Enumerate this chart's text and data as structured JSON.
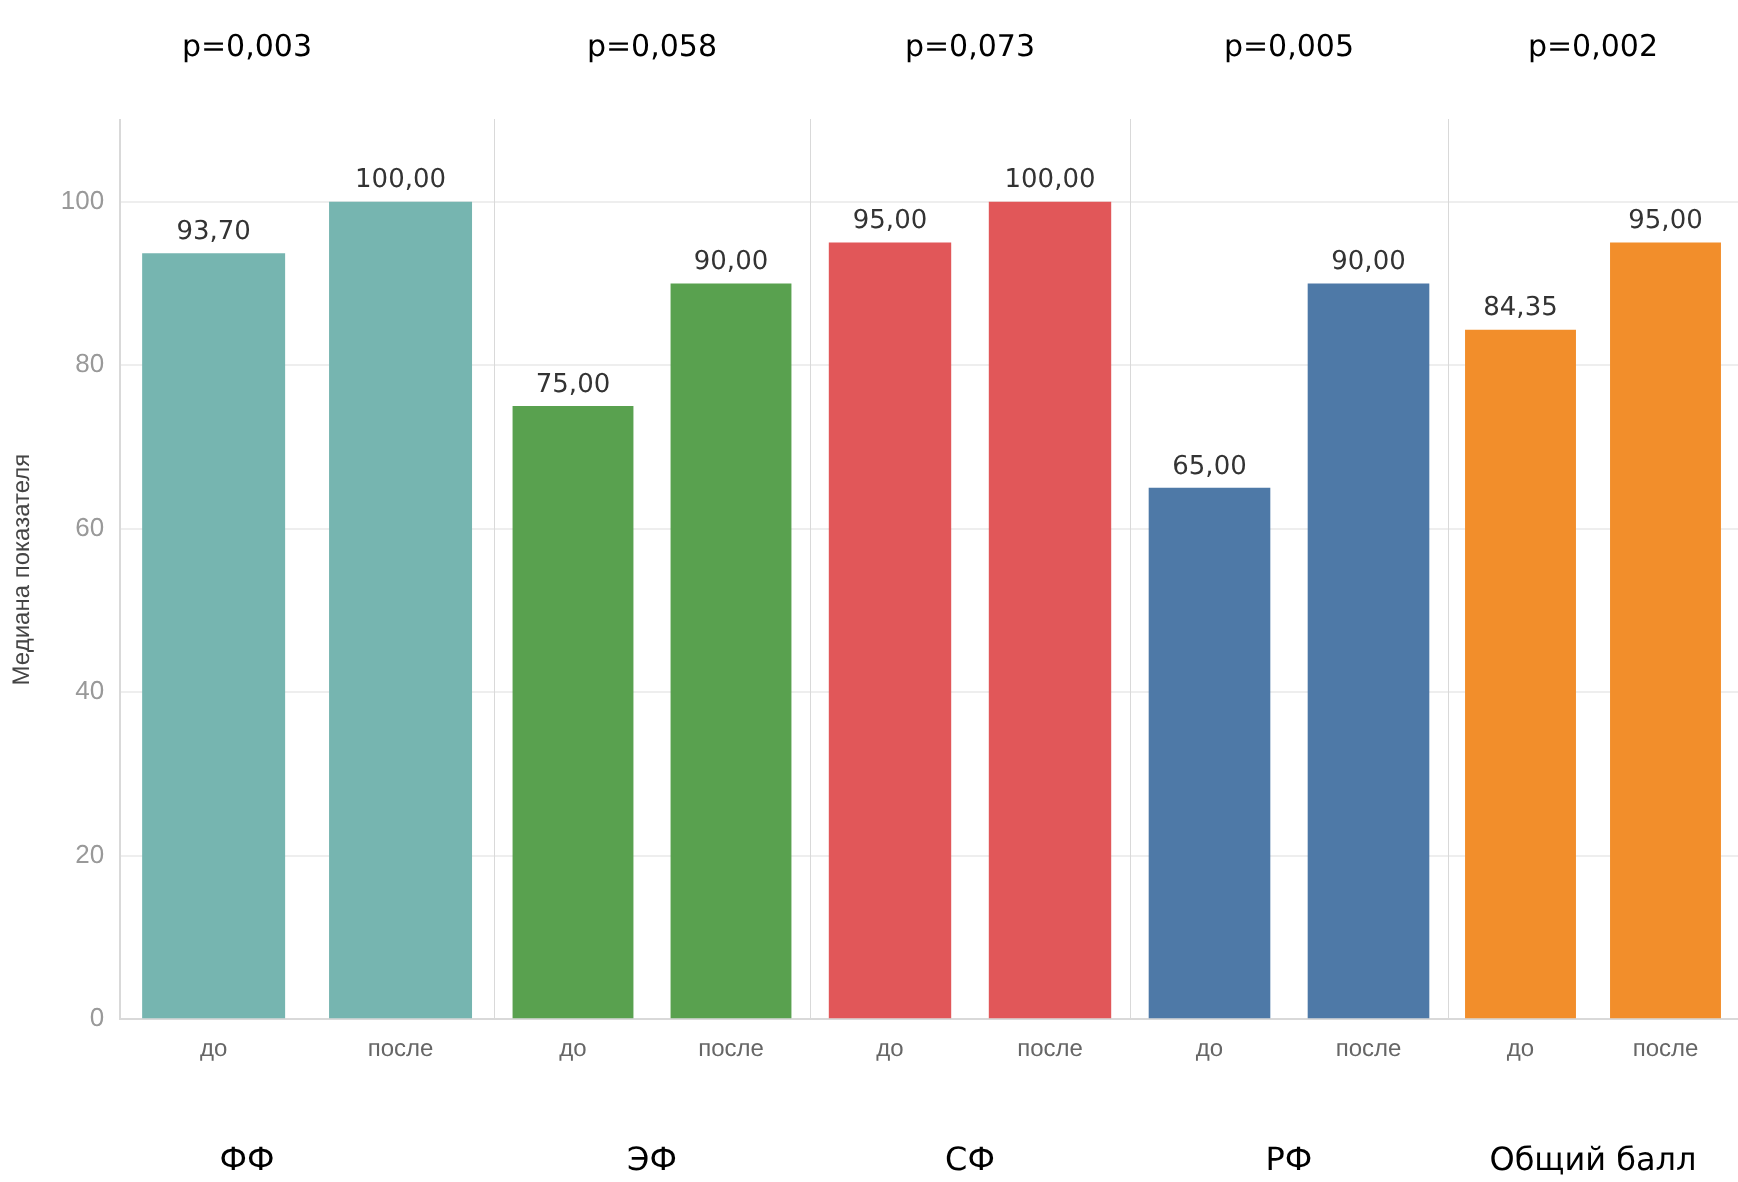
{
  "chart_data": [
    {
      "type": "bar",
      "title": "p=0,003",
      "xlabel": "ФФ",
      "ylabel": "Медиана показателя",
      "categories": [
        "до",
        "после"
      ],
      "values": [
        93.7,
        100
      ],
      "colors": [
        "#76b5b0",
        "#76b5b0"
      ],
      "value_labels": [
        "93,70",
        "100,00"
      ],
      "ylim": [
        0,
        110
      ],
      "yticks": [
        0,
        20,
        40,
        60,
        80,
        100
      ],
      "grid": "y"
    },
    {
      "type": "bar",
      "title": "p=0,058",
      "xlabel": "ЭФ",
      "categories": [
        "до",
        "после"
      ],
      "values": [
        75,
        90
      ],
      "colors": [
        "#59a14f",
        "#59a14f"
      ],
      "value_labels": [
        "75,00",
        "90,00"
      ],
      "ylim": [
        0,
        110
      ],
      "yticks": [
        0,
        20,
        40,
        60,
        80,
        100
      ],
      "grid": "y",
      "tick_labels": "x"
    },
    {
      "type": "bar",
      "title": "p=0,073",
      "xlabel": "СФ",
      "categories": [
        "до",
        "после"
      ],
      "values": [
        95,
        100
      ],
      "colors": [
        "#e15759",
        "#e15759"
      ],
      "value_labels": [
        "95,00",
        "100,00"
      ],
      "ylim": [
        0,
        110
      ],
      "yticks": [
        0,
        20,
        40,
        60,
        80,
        100
      ],
      "grid": "y",
      "tick_labels": "x"
    },
    {
      "type": "bar",
      "title": "p=0,005",
      "xlabel": "РФ",
      "categories": [
        "до",
        "после"
      ],
      "values": [
        65,
        90
      ],
      "colors": [
        "#4e79a7",
        "#4e79a7"
      ],
      "value_labels": [
        "65,00",
        "90,00"
      ],
      "ylim": [
        0,
        110
      ],
      "yticks": [
        0,
        20,
        40,
        60,
        80,
        100
      ],
      "grid": "y",
      "tick_labels": "x"
    },
    {
      "type": "bar",
      "title": "p=0,002",
      "xlabel": "Общий балл",
      "categories": [
        "до",
        "после"
      ],
      "values": [
        84.35,
        95
      ],
      "colors": [
        "#f28e2b",
        "#f28e2b"
      ],
      "value_labels": [
        "84,35",
        "95,00"
      ],
      "ylim": [
        0,
        110
      ],
      "yticks": [
        0,
        20,
        40,
        60,
        80,
        100
      ],
      "grid": "y",
      "tick_labels": "x"
    }
  ]
}
